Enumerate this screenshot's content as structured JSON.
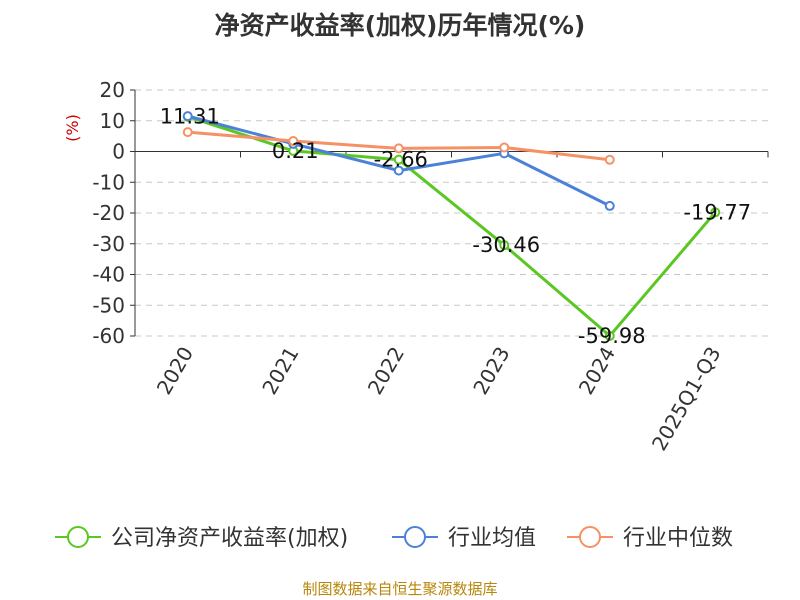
{
  "chart_data": {
    "type": "line",
    "title": "净资产收益率(加权)历年情况(%)",
    "ylabel": "(%)",
    "categories": [
      "2020",
      "2021",
      "2022",
      "2023",
      "2024",
      "2025Q1-Q3"
    ],
    "yticks": [
      20,
      10,
      0,
      -10,
      -20,
      -30,
      -40,
      -50,
      -60
    ],
    "ylim": [
      -60,
      20
    ],
    "grid": true,
    "legend_position": "bottom",
    "series": [
      {
        "name": "公司净资产收益率(加权)",
        "color": "#5ac723",
        "values": [
          11.31,
          0.21,
          -2.66,
          -30.46,
          -59.98,
          -19.77
        ],
        "labels": [
          "11.31",
          "0.21",
          "-2.66",
          "-30.46",
          "-59.98",
          "-19.77"
        ]
      },
      {
        "name": "行业均值",
        "color": "#4b82d8",
        "values": [
          11.5,
          2.5,
          -6.2,
          -0.6,
          -17.7,
          null
        ]
      },
      {
        "name": "行业中位数",
        "color": "#f59164",
        "values": [
          6.3,
          3.4,
          1.0,
          1.3,
          -2.7,
          null
        ]
      }
    ]
  },
  "footer": {
    "source": "制图数据来自恒生聚源数据库"
  }
}
